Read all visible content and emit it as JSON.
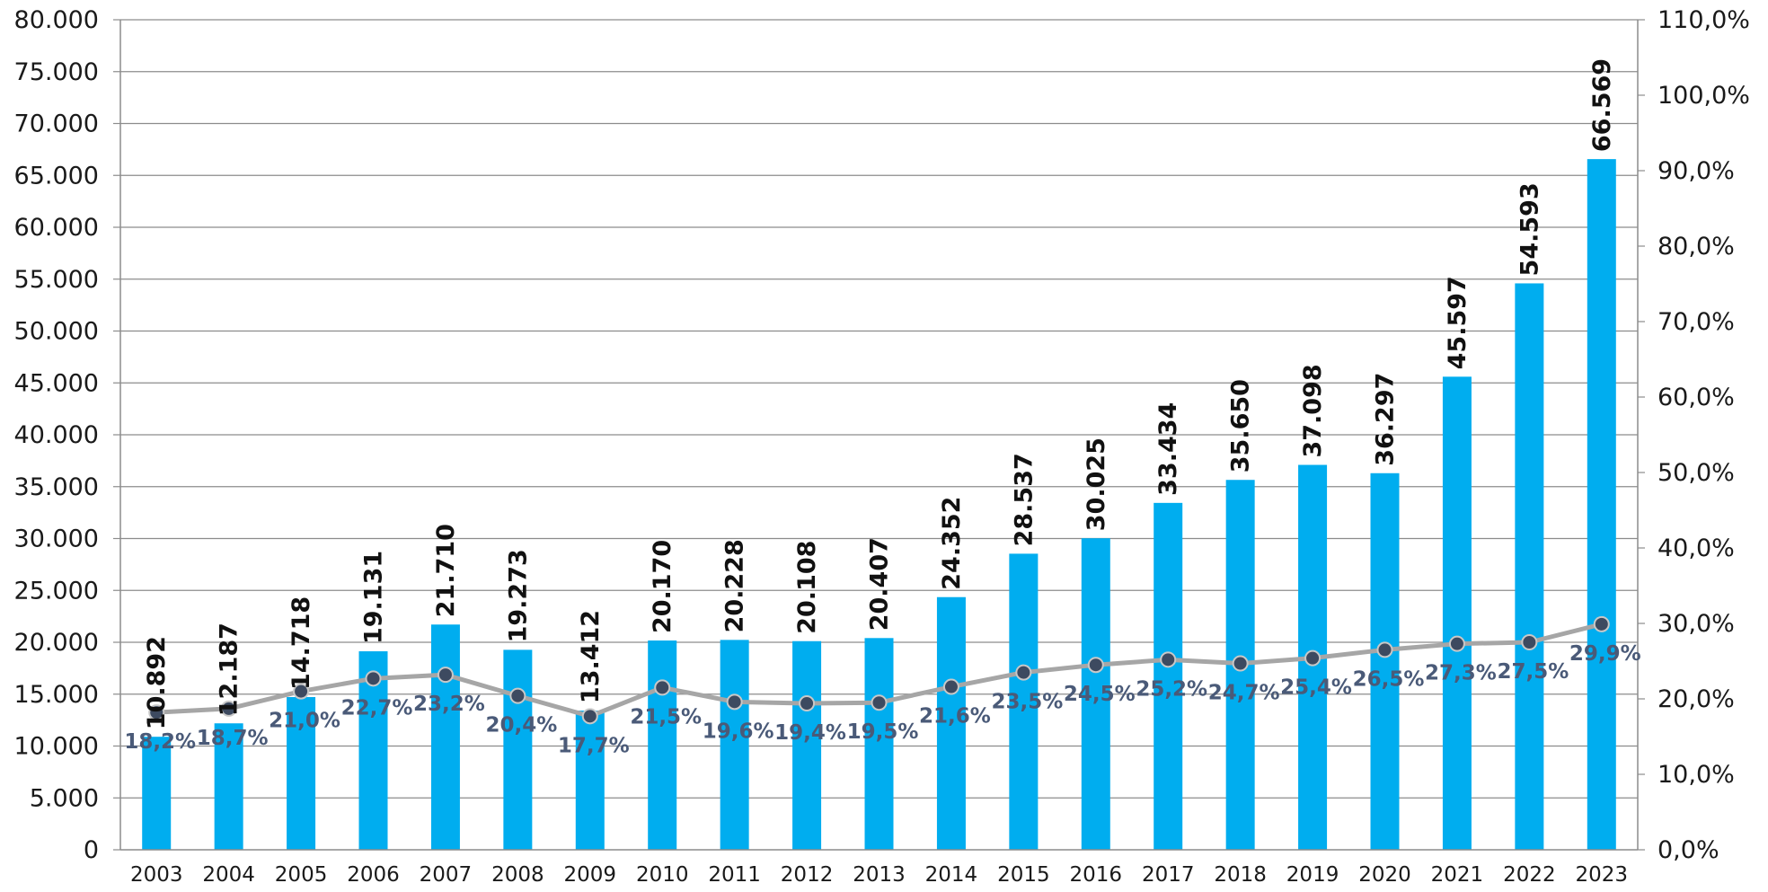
{
  "chart_data": {
    "type": "bar",
    "categories": [
      "2003",
      "2004",
      "2005",
      "2006",
      "2007",
      "2008",
      "2009",
      "2010",
      "2011",
      "2012",
      "2013",
      "2014",
      "2015",
      "2016",
      "2017",
      "2018",
      "2019",
      "2020",
      "2021",
      "2022",
      "2023"
    ],
    "series": [
      {
        "type": "bar",
        "axis": "left",
        "values": [
          10892,
          12187,
          14718,
          19131,
          21710,
          19273,
          13412,
          20170,
          20228,
          20108,
          20407,
          24352,
          28537,
          30025,
          33434,
          35650,
          37098,
          36297,
          45597,
          54593,
          66569
        ],
        "labels": [
          "10.892",
          "12.187",
          "14.718",
          "19.131",
          "21.710",
          "19.273",
          "13.412",
          "20.170",
          "20.228",
          "20.108",
          "20.407",
          "24.352",
          "28.537",
          "30.025",
          "33.434",
          "35.650",
          "37.098",
          "36.297",
          "45.597",
          "54.593",
          "66.569"
        ],
        "color": "#00adef"
      },
      {
        "type": "line",
        "axis": "right",
        "values": [
          18.2,
          18.7,
          21.0,
          22.7,
          23.2,
          20.4,
          17.7,
          21.5,
          19.6,
          19.4,
          19.5,
          21.6,
          23.5,
          24.5,
          25.2,
          24.7,
          25.4,
          26.5,
          27.3,
          27.5,
          29.9
        ],
        "labels": [
          "18,2%",
          "18,7%",
          "21,0%",
          "22,7%",
          "23,2%",
          "20,4%",
          "17,7%",
          "21,5%",
          "19,6%",
          "19,4%",
          "19,5%",
          "21,6%",
          "23,5%",
          "24,5%",
          "25,2%",
          "24,7%",
          "25,4%",
          "26,5%",
          "27,3%",
          "27,5%",
          "29,9%"
        ],
        "color": "#a6a6a6",
        "marker_color": "#3d4a60"
      }
    ],
    "y_left": {
      "ylim": [
        0,
        80000
      ],
      "ticks": [
        0,
        5000,
        10000,
        15000,
        20000,
        25000,
        30000,
        35000,
        40000,
        45000,
        50000,
        55000,
        60000,
        65000,
        70000,
        75000,
        80000
      ],
      "tick_labels": [
        "0",
        "5.000",
        "10.000",
        "15.000",
        "20.000",
        "25.000",
        "30.000",
        "35.000",
        "40.000",
        "45.000",
        "50.000",
        "55.000",
        "60.000",
        "65.000",
        "70.000",
        "75.000",
        "80.000"
      ]
    },
    "y_right": {
      "ylim": [
        0,
        110
      ],
      "ticks": [
        0,
        10,
        20,
        30,
        40,
        50,
        60,
        70,
        80,
        90,
        100,
        110
      ],
      "tick_labels": [
        "0,0%",
        "10,0%",
        "20,0%",
        "30,0%",
        "40,0%",
        "50,0%",
        "60,0%",
        "70,0%",
        "80,0%",
        "90,0%",
        "100,0%",
        "110,0%"
      ]
    },
    "grid": true,
    "legend": "none"
  }
}
